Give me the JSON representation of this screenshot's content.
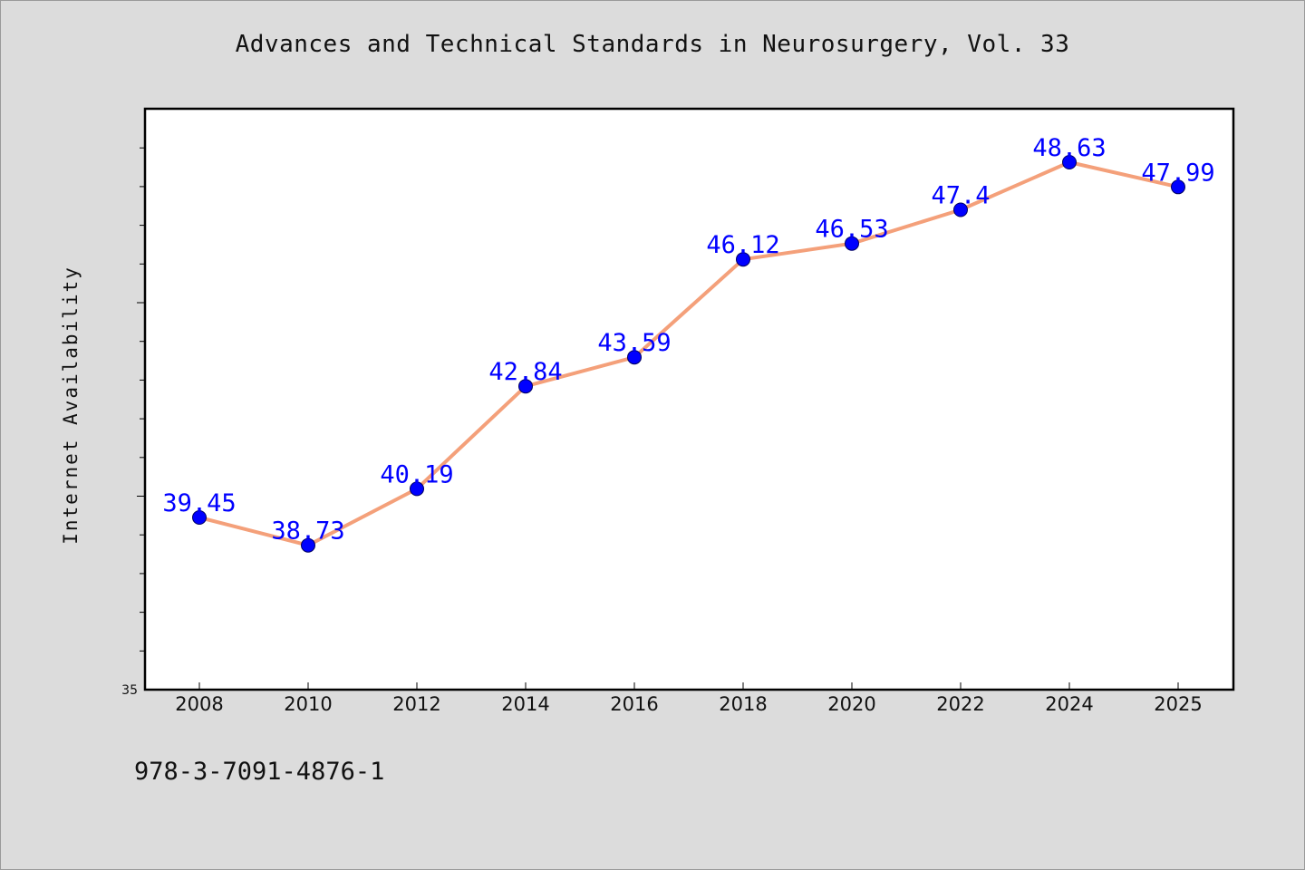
{
  "chart_data": {
    "type": "line",
    "title": "Advances and Technical Standards in Neurosurgery, Vol. 33",
    "xlabel": "",
    "ylabel": "Internet Availability",
    "categories": [
      "2008",
      "2010",
      "2012",
      "2014",
      "2016",
      "2018",
      "2020",
      "2022",
      "2024",
      "2025"
    ],
    "series": [
      {
        "values": [
          39.45,
          38.73,
          40.19,
          42.84,
          43.59,
          46.12,
          46.53,
          47.4,
          48.63,
          47.99
        ],
        "data_labels": [
          "39.45",
          "38.73",
          "40.19",
          "42.84",
          "43.59",
          "46.12",
          "46.53",
          "47.4",
          "48.63",
          "47.99"
        ]
      }
    ],
    "ylim": [
      35,
      50
    ],
    "y_tick_labels": [
      "35"
    ],
    "grid": false,
    "legend": "none",
    "colors": {
      "line": "#f4a07a",
      "marker": "#0000ff",
      "data_label": "#0000ff",
      "background": "#dcdcdc",
      "plot_area": "#ffffff"
    }
  },
  "footer": {
    "isbn": "978-3-7091-4876-1"
  }
}
